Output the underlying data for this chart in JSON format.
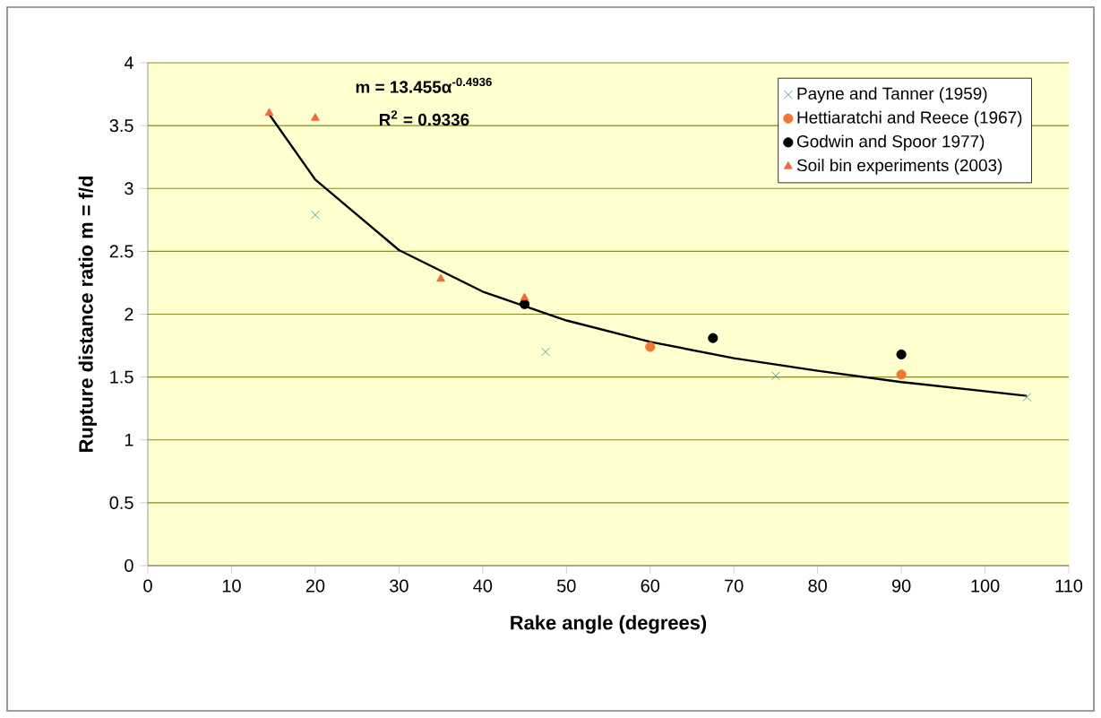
{
  "chart_data": {
    "type": "scatter",
    "xlabel": "Rake angle (degrees)",
    "ylabel": "Rupture distance ratio m = f/d",
    "xlim": [
      0,
      110
    ],
    "ylim": [
      0,
      4
    ],
    "xticks": [
      0,
      10,
      20,
      30,
      40,
      50,
      60,
      70,
      80,
      90,
      100,
      110
    ],
    "yticks": [
      0,
      0.5,
      1,
      1.5,
      2,
      2.5,
      3,
      3.5,
      4
    ],
    "grid": "y",
    "legend": "top right",
    "annotations": [
      "m = 13.455α$^{-0.4936}$",
      "R$^{2}$ = 0.9336"
    ],
    "series": [
      {
        "name": "Payne and Tanner (1959)",
        "color": "#3a8a9a",
        "marker": "cross",
        "x": [
          20,
          47.5,
          75,
          105
        ],
        "values": [
          2.79,
          1.7,
          1.51,
          1.34
        ]
      },
      {
        "name": "Hettiaratchi and Reece (1967)",
        "color": "#f07830",
        "marker": "circle",
        "x": [
          60,
          90
        ],
        "values": [
          1.74,
          1.52
        ]
      },
      {
        "name": "Godwin and Spoor 1977)",
        "color": "#000000",
        "marker": "circle",
        "x": [
          45,
          67.5,
          90
        ],
        "values": [
          2.08,
          1.81,
          1.68
        ]
      },
      {
        "name": "Soil bin experiments (2003)",
        "color": "#f06a3a",
        "marker": "triangle",
        "x": [
          14.5,
          20,
          35,
          45
        ],
        "values": [
          3.6,
          3.56,
          2.28,
          2.13
        ]
      },
      {
        "type": "line",
        "color": "#000000",
        "marker": "none",
        "line_style": "solid",
        "x": [
          14.5,
          20,
          30,
          40,
          50,
          60,
          70,
          80,
          90,
          105
        ],
        "values": [
          3.59,
          3.07,
          2.51,
          2.18,
          1.95,
          1.78,
          1.65,
          1.55,
          1.46,
          1.35
        ]
      }
    ]
  }
}
